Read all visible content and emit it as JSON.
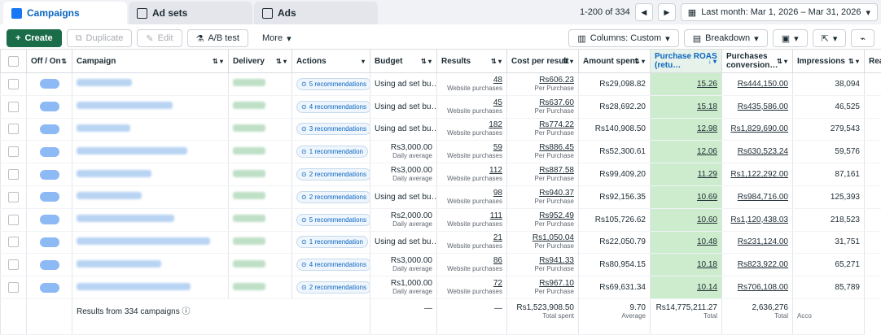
{
  "tabs": [
    {
      "label": "Campaigns",
      "icon": "campaigns-icon"
    },
    {
      "label": "Ad sets",
      "icon": "adsets-icon"
    },
    {
      "label": "Ads",
      "icon": "ads-icon"
    }
  ],
  "pagination": {
    "range": "1-200 of 334",
    "date_range": "Last month: Mar 1, 2026 – Mar 31, 2026"
  },
  "toolbar": {
    "create": "Create",
    "duplicate": "Duplicate",
    "edit": "Edit",
    "ab_test": "A/B test",
    "more": "More",
    "columns": "Columns: Custom",
    "breakdown": "Breakdown"
  },
  "columns": [
    "Off / On",
    "Campaign",
    "Delivery",
    "Actions",
    "Budget",
    "Results",
    "Cost per result",
    "Amount spent",
    "Purchase ROAS (retu…",
    "Purchases conversion…",
    "Impressions",
    "Rea"
  ],
  "rows": [
    {
      "rec": "5 recommendations",
      "budget": "Using ad set bu…",
      "budget_sub": "",
      "results": "48",
      "results_sub": "Website purchases",
      "cpr": "Rs606.23",
      "spent": "Rs29,098.82",
      "roas": "15.26",
      "conv": "Rs444,150.00",
      "impr": "38,094"
    },
    {
      "rec": "4 recommendations",
      "budget": "Using ad set bu…",
      "budget_sub": "",
      "results": "45",
      "results_sub": "Website purchases",
      "cpr": "Rs637.60",
      "spent": "Rs28,692.20",
      "roas": "15.18",
      "conv": "Rs435,586.00",
      "impr": "46,525"
    },
    {
      "rec": "3 recommendations",
      "budget": "Using ad set bu…",
      "budget_sub": "",
      "results": "182",
      "results_sub": "Website purchases",
      "cpr": "Rs774.22",
      "spent": "Rs140,908.50",
      "roas": "12.98",
      "conv": "Rs1,829,690.00",
      "impr": "279,543"
    },
    {
      "rec": "1 recommendation",
      "budget": "Rs3,000.00",
      "budget_sub": "Daily average",
      "results": "59",
      "results_sub": "Website purchases",
      "cpr": "Rs886.45",
      "spent": "Rs52,300.61",
      "roas": "12.06",
      "conv": "Rs630,523.24",
      "impr": "59,576"
    },
    {
      "rec": "2 recommendations",
      "budget": "Rs3,000.00",
      "budget_sub": "Daily average",
      "results": "112",
      "results_sub": "Website purchases",
      "cpr": "Rs887.58",
      "spent": "Rs99,409.20",
      "roas": "11.29",
      "conv": "Rs1,122,292.00",
      "impr": "87,161"
    },
    {
      "rec": "2 recommendations",
      "budget": "Using ad set bu…",
      "budget_sub": "",
      "results": "98",
      "results_sub": "Website purchases",
      "cpr": "Rs940.37",
      "spent": "Rs92,156.35",
      "roas": "10.69",
      "conv": "Rs984,716.00",
      "impr": "125,393"
    },
    {
      "rec": "5 recommendations",
      "budget": "Rs2,000.00",
      "budget_sub": "Daily average",
      "results": "111",
      "results_sub": "Website purchases",
      "cpr": "Rs952.49",
      "spent": "Rs105,726.62",
      "roas": "10.60",
      "conv": "Rs1,120,438.03",
      "impr": "218,523"
    },
    {
      "rec": "1 recommendation",
      "budget": "Using ad set bu…",
      "budget_sub": "",
      "results": "21",
      "results_sub": "Website purchases",
      "cpr": "Rs1,050.04",
      "spent": "Rs22,050.79",
      "roas": "10.48",
      "conv": "Rs231,124.00",
      "impr": "31,751"
    },
    {
      "rec": "4 recommendations",
      "budget": "Rs3,000.00",
      "budget_sub": "Daily average",
      "results": "86",
      "results_sub": "Website purchases",
      "cpr": "Rs941.33",
      "spent": "Rs80,954.15",
      "roas": "10.18",
      "conv": "Rs823,922.00",
      "impr": "65,271"
    },
    {
      "rec": "2 recommendations",
      "budget": "Rs1,000.00",
      "budget_sub": "Daily average",
      "results": "72",
      "results_sub": "Website purchases",
      "cpr": "Rs967.10",
      "spent": "Rs69,631.34",
      "roas": "10.14",
      "conv": "Rs706,108.00",
      "impr": "85,789"
    }
  ],
  "per_purchase": "Per Purchase",
  "footer": {
    "label": "Results from 334 campaigns",
    "results": "—",
    "cpr": "—",
    "spent": "Rs1,523,908.50",
    "spent_sub": "Total spent",
    "roas": "9.70",
    "roas_sub": "Average",
    "conv": "Rs14,775,211.27",
    "conv_sub": "Total",
    "impr": "2,636,276",
    "impr_sub": "Total",
    "reach_sub": "Acco"
  },
  "colors": {
    "create": "#1b6d49",
    "roas_highlight": "#cdeccd",
    "link": "#0a66c2"
  }
}
